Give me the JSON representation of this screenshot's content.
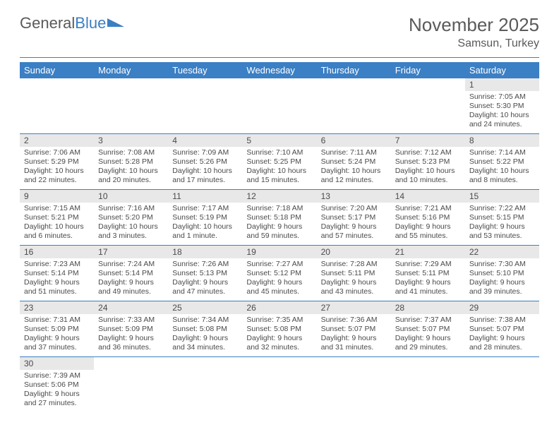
{
  "logo": {
    "word1": "General",
    "word2": "Blue",
    "text_color": "#5a5a5a",
    "accent_color": "#3b7fc4"
  },
  "title": "November 2025",
  "subtitle": "Samsun, Turkey",
  "colors": {
    "header_bg": "#3b7fc4",
    "header_text": "#ffffff",
    "rule": "#3b7fc4",
    "daynum_bg": "#e8e8e8",
    "text": "#4a4a4a",
    "background": "#ffffff"
  },
  "fonts": {
    "title_pt": 26,
    "subtitle_pt": 16,
    "header_pt": 13,
    "daynum_pt": 12,
    "detail_pt": 10.5
  },
  "headers": [
    "Sunday",
    "Monday",
    "Tuesday",
    "Wednesday",
    "Thursday",
    "Friday",
    "Saturday"
  ],
  "weeks": [
    [
      null,
      null,
      null,
      null,
      null,
      null,
      {
        "n": "1",
        "rise": "Sunrise: 7:05 AM",
        "set": "Sunset: 5:30 PM",
        "dl1": "Daylight: 10 hours",
        "dl2": "and 24 minutes."
      }
    ],
    [
      {
        "n": "2",
        "rise": "Sunrise: 7:06 AM",
        "set": "Sunset: 5:29 PM",
        "dl1": "Daylight: 10 hours",
        "dl2": "and 22 minutes."
      },
      {
        "n": "3",
        "rise": "Sunrise: 7:08 AM",
        "set": "Sunset: 5:28 PM",
        "dl1": "Daylight: 10 hours",
        "dl2": "and 20 minutes."
      },
      {
        "n": "4",
        "rise": "Sunrise: 7:09 AM",
        "set": "Sunset: 5:26 PM",
        "dl1": "Daylight: 10 hours",
        "dl2": "and 17 minutes."
      },
      {
        "n": "5",
        "rise": "Sunrise: 7:10 AM",
        "set": "Sunset: 5:25 PM",
        "dl1": "Daylight: 10 hours",
        "dl2": "and 15 minutes."
      },
      {
        "n": "6",
        "rise": "Sunrise: 7:11 AM",
        "set": "Sunset: 5:24 PM",
        "dl1": "Daylight: 10 hours",
        "dl2": "and 12 minutes."
      },
      {
        "n": "7",
        "rise": "Sunrise: 7:12 AM",
        "set": "Sunset: 5:23 PM",
        "dl1": "Daylight: 10 hours",
        "dl2": "and 10 minutes."
      },
      {
        "n": "8",
        "rise": "Sunrise: 7:14 AM",
        "set": "Sunset: 5:22 PM",
        "dl1": "Daylight: 10 hours",
        "dl2": "and 8 minutes."
      }
    ],
    [
      {
        "n": "9",
        "rise": "Sunrise: 7:15 AM",
        "set": "Sunset: 5:21 PM",
        "dl1": "Daylight: 10 hours",
        "dl2": "and 6 minutes."
      },
      {
        "n": "10",
        "rise": "Sunrise: 7:16 AM",
        "set": "Sunset: 5:20 PM",
        "dl1": "Daylight: 10 hours",
        "dl2": "and 3 minutes."
      },
      {
        "n": "11",
        "rise": "Sunrise: 7:17 AM",
        "set": "Sunset: 5:19 PM",
        "dl1": "Daylight: 10 hours",
        "dl2": "and 1 minute."
      },
      {
        "n": "12",
        "rise": "Sunrise: 7:18 AM",
        "set": "Sunset: 5:18 PM",
        "dl1": "Daylight: 9 hours",
        "dl2": "and 59 minutes."
      },
      {
        "n": "13",
        "rise": "Sunrise: 7:20 AM",
        "set": "Sunset: 5:17 PM",
        "dl1": "Daylight: 9 hours",
        "dl2": "and 57 minutes."
      },
      {
        "n": "14",
        "rise": "Sunrise: 7:21 AM",
        "set": "Sunset: 5:16 PM",
        "dl1": "Daylight: 9 hours",
        "dl2": "and 55 minutes."
      },
      {
        "n": "15",
        "rise": "Sunrise: 7:22 AM",
        "set": "Sunset: 5:15 PM",
        "dl1": "Daylight: 9 hours",
        "dl2": "and 53 minutes."
      }
    ],
    [
      {
        "n": "16",
        "rise": "Sunrise: 7:23 AM",
        "set": "Sunset: 5:14 PM",
        "dl1": "Daylight: 9 hours",
        "dl2": "and 51 minutes."
      },
      {
        "n": "17",
        "rise": "Sunrise: 7:24 AM",
        "set": "Sunset: 5:14 PM",
        "dl1": "Daylight: 9 hours",
        "dl2": "and 49 minutes."
      },
      {
        "n": "18",
        "rise": "Sunrise: 7:26 AM",
        "set": "Sunset: 5:13 PM",
        "dl1": "Daylight: 9 hours",
        "dl2": "and 47 minutes."
      },
      {
        "n": "19",
        "rise": "Sunrise: 7:27 AM",
        "set": "Sunset: 5:12 PM",
        "dl1": "Daylight: 9 hours",
        "dl2": "and 45 minutes."
      },
      {
        "n": "20",
        "rise": "Sunrise: 7:28 AM",
        "set": "Sunset: 5:11 PM",
        "dl1": "Daylight: 9 hours",
        "dl2": "and 43 minutes."
      },
      {
        "n": "21",
        "rise": "Sunrise: 7:29 AM",
        "set": "Sunset: 5:11 PM",
        "dl1": "Daylight: 9 hours",
        "dl2": "and 41 minutes."
      },
      {
        "n": "22",
        "rise": "Sunrise: 7:30 AM",
        "set": "Sunset: 5:10 PM",
        "dl1": "Daylight: 9 hours",
        "dl2": "and 39 minutes."
      }
    ],
    [
      {
        "n": "23",
        "rise": "Sunrise: 7:31 AM",
        "set": "Sunset: 5:09 PM",
        "dl1": "Daylight: 9 hours",
        "dl2": "and 37 minutes."
      },
      {
        "n": "24",
        "rise": "Sunrise: 7:33 AM",
        "set": "Sunset: 5:09 PM",
        "dl1": "Daylight: 9 hours",
        "dl2": "and 36 minutes."
      },
      {
        "n": "25",
        "rise": "Sunrise: 7:34 AM",
        "set": "Sunset: 5:08 PM",
        "dl1": "Daylight: 9 hours",
        "dl2": "and 34 minutes."
      },
      {
        "n": "26",
        "rise": "Sunrise: 7:35 AM",
        "set": "Sunset: 5:08 PM",
        "dl1": "Daylight: 9 hours",
        "dl2": "and 32 minutes."
      },
      {
        "n": "27",
        "rise": "Sunrise: 7:36 AM",
        "set": "Sunset: 5:07 PM",
        "dl1": "Daylight: 9 hours",
        "dl2": "and 31 minutes."
      },
      {
        "n": "28",
        "rise": "Sunrise: 7:37 AM",
        "set": "Sunset: 5:07 PM",
        "dl1": "Daylight: 9 hours",
        "dl2": "and 29 minutes."
      },
      {
        "n": "29",
        "rise": "Sunrise: 7:38 AM",
        "set": "Sunset: 5:07 PM",
        "dl1": "Daylight: 9 hours",
        "dl2": "and 28 minutes."
      }
    ],
    [
      {
        "n": "30",
        "rise": "Sunrise: 7:39 AM",
        "set": "Sunset: 5:06 PM",
        "dl1": "Daylight: 9 hours",
        "dl2": "and 27 minutes."
      },
      null,
      null,
      null,
      null,
      null,
      null
    ]
  ]
}
